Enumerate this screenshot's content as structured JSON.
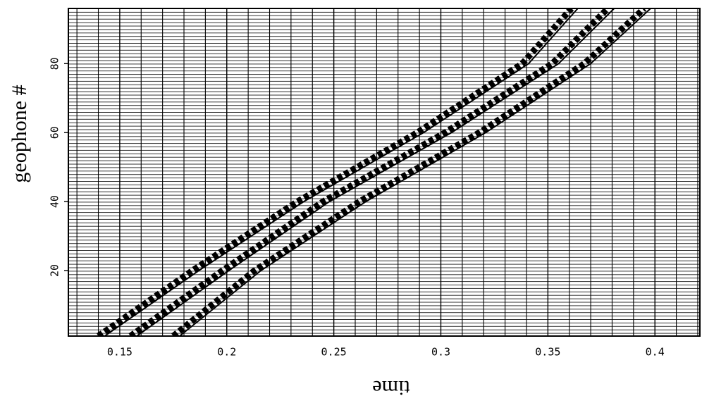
{
  "chart_data": {
    "type": "wiggle",
    "xlabel": "time",
    "ylabel": "geophone #",
    "xlim": [
      0.126,
      0.421
    ],
    "ylim": [
      1,
      96
    ],
    "xticks": [
      0.15,
      0.2,
      0.25,
      0.3,
      0.35,
      0.4
    ],
    "yticks": [
      20,
      40,
      60,
      80
    ],
    "minor_xticks": [
      0.13,
      0.14,
      0.16,
      0.17,
      0.18,
      0.19,
      0.21,
      0.22,
      0.23,
      0.24,
      0.26,
      0.27,
      0.28,
      0.29,
      0.31,
      0.32,
      0.33,
      0.34,
      0.36,
      0.37,
      0.38,
      0.39,
      0.41,
      0.42
    ],
    "color": "#000000",
    "series": [
      {
        "x": [
          0.14,
          0.184,
          0.233,
          0.289,
          0.338,
          0.361
        ],
        "y": [
          1,
          20,
          40,
          60,
          80,
          96
        ]
      },
      {
        "x": [
          0.155,
          0.198,
          0.245,
          0.302,
          0.352,
          0.378
        ],
        "y": [
          1,
          20,
          40,
          60,
          80,
          96
        ]
      },
      {
        "x": [
          0.175,
          0.213,
          0.262,
          0.318,
          0.367,
          0.395
        ],
        "y": [
          1,
          20,
          40,
          60,
          80,
          96
        ]
      }
    ]
  }
}
